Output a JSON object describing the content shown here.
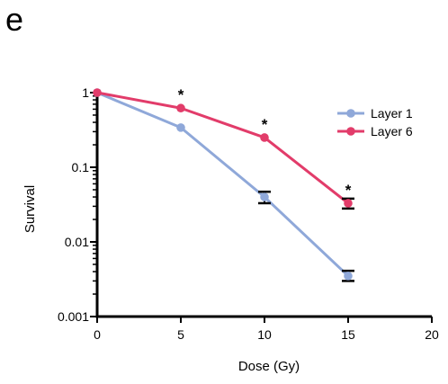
{
  "panel_label": "e",
  "chart_data": {
    "type": "line",
    "title": "",
    "xlabel": "Dose (Gy)",
    "ylabel": "Survival",
    "xlim": [
      0,
      20
    ],
    "ylim": [
      0.001,
      1
    ],
    "yscale": "log",
    "x_ticks": [
      0,
      5,
      10,
      15,
      20
    ],
    "x_tick_labels": [
      "0",
      "5",
      "10",
      "15",
      "20"
    ],
    "y_ticks": [
      0.001,
      0.01,
      0.1,
      1
    ],
    "y_tick_labels": [
      "0.001",
      "0.01",
      "0.1",
      "1"
    ],
    "grid": false,
    "legend_position": "top-right",
    "series": [
      {
        "name": "Layer 1",
        "color": "#8fa8d9",
        "x": [
          0,
          5,
          10,
          15
        ],
        "y": [
          1,
          0.34,
          0.04,
          0.0035
        ],
        "error_low": [
          null,
          null,
          0.033,
          0.003
        ],
        "error_high": [
          null,
          null,
          0.047,
          0.0041
        ]
      },
      {
        "name": "Layer 6",
        "color": "#e23c6a",
        "x": [
          0,
          5,
          10,
          15
        ],
        "y": [
          1,
          0.62,
          0.25,
          0.033
        ],
        "error_low": [
          null,
          null,
          null,
          0.028
        ],
        "error_high": [
          null,
          null,
          null,
          0.038
        ]
      }
    ],
    "annotations": [
      {
        "x": 5,
        "y": 0.62,
        "text": "*"
      },
      {
        "x": 10,
        "y": 0.25,
        "text": "*"
      },
      {
        "x": 15,
        "y": 0.033,
        "text": "*"
      }
    ]
  }
}
